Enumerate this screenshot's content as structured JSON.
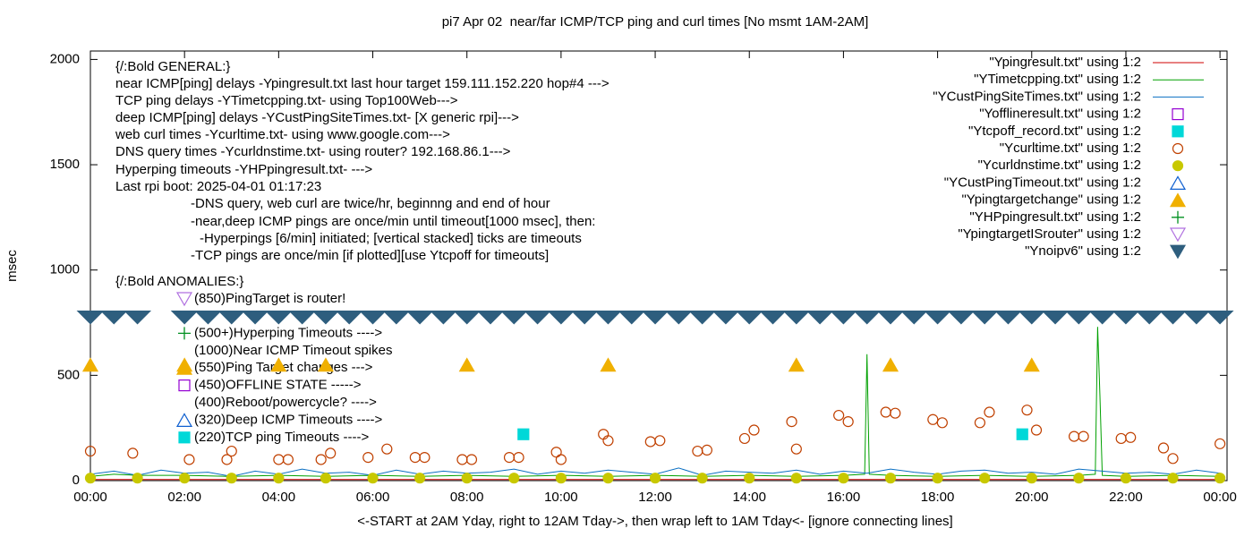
{
  "chart_data": {
    "type": "line",
    "title": "pi7 Apr 02  near/far ICMP/TCP ping and curl times [No msmt 1AM-2AM]",
    "xlabel": "<-START at 2AM Yday, right to 12AM Tday->, then wrap left to 1AM Tday<- [ignore connecting lines]",
    "ylabel": "msec",
    "xlim": [
      0,
      24.15
    ],
    "ylim": [
      0,
      2040
    ],
    "xticks": [
      {
        "value": 0,
        "label": "00:00"
      },
      {
        "value": 2,
        "label": "02:00"
      },
      {
        "value": 4,
        "label": "04:00"
      },
      {
        "value": 6,
        "label": "06:00"
      },
      {
        "value": 8,
        "label": "08:00"
      },
      {
        "value": 10,
        "label": "10:00"
      },
      {
        "value": 12,
        "label": "12:00"
      },
      {
        "value": 14,
        "label": "14:00"
      },
      {
        "value": 16,
        "label": "16:00"
      },
      {
        "value": 18,
        "label": "18:00"
      },
      {
        "value": 20,
        "label": "20:00"
      },
      {
        "value": 22,
        "label": "22:00"
      },
      {
        "value": 24,
        "label": "00:00"
      }
    ],
    "yticks": [
      0,
      500,
      1000,
      1500,
      2000
    ],
    "legend": "top-right",
    "notes": [
      "{/:Bold GENERAL:}",
      "near ICMP[ping] delays -Ypingresult.txt last hour target 159.111.152.220 hop#4 --->",
      "TCP ping delays -YTimetcpping.txt- using Top100Web--->",
      "deep ICMP[ping] delays -YCustPingSiteTimes.txt- [X generic rpi]--->",
      "web curl times -Ycurltime.txt- using www.google.com--->",
      "DNS query times -Ycurldnstime.txt- using router? 192.168.86.1--->",
      "Hyperping timeouts -YHPpingresult.txt- --->",
      "Last rpi boot: 2025-04-01 01:17:23",
      "-DNS query, web curl are twice/hr, beginnng and end of hour",
      "-near,deep ICMP pings are once/min until timeout[1000 msec], then:",
      "-Hyperpings [6/min] initiated; [vertical stacked] ticks are timeouts",
      "-TCP pings are once/min [if plotted][use Ytcpoff for timeouts]",
      "{/:Bold ANOMALIES:}"
    ],
    "anomalies": [
      "(850)PingTarget is router!",
      "(500+)Hyperping Timeouts ---->",
      "(1000)Near ICMP Timeout spikes",
      "(550)Ping Target changes --->",
      "(450)OFFLINE STATE ----->",
      "(400)Reboot/powercycle? ---->",
      "(320)Deep ICMP Timeouts ---->",
      "(220)TCP ping Timeouts ---->"
    ],
    "series": [
      {
        "name": "\"Ypingresult.txt\" using 1:2",
        "style": "line",
        "color": "#d00000",
        "x": [
          0,
          4,
          8,
          12,
          16,
          20,
          24
        ],
        "values": [
          5,
          5,
          5,
          5,
          5,
          5,
          5
        ]
      },
      {
        "name": "\"YTimetcpping.txt\" using 1:2",
        "style": "line",
        "color": "#00a000",
        "x": [
          0,
          0.5,
          1,
          2,
          3,
          4,
          5,
          6,
          7,
          8,
          9,
          10,
          11,
          12,
          13,
          14,
          15,
          16,
          16.45,
          16.5,
          16.55,
          17,
          18,
          19,
          20,
          21,
          21.35,
          21.4,
          21.45,
          21.5,
          22,
          23,
          24
        ],
        "values": [
          20,
          30,
          25,
          25,
          20,
          25,
          20,
          25,
          20,
          25,
          20,
          25,
          20,
          25,
          20,
          25,
          20,
          25,
          30,
          600,
          30,
          25,
          20,
          25,
          20,
          25,
          30,
          730,
          400,
          25,
          20,
          25,
          20
        ]
      },
      {
        "name": "\"YCustPingSiteTimes.txt\" using 1:2",
        "style": "line",
        "color": "#0a6fc2",
        "x": [
          0,
          0.5,
          1,
          1.5,
          2,
          2.5,
          3,
          3.5,
          4,
          4.5,
          5,
          5.5,
          6,
          6.5,
          7,
          7.5,
          8,
          8.5,
          9,
          9.5,
          10,
          10.5,
          11,
          11.5,
          12,
          12.5,
          13,
          13.5,
          14,
          14.5,
          15,
          15.5,
          16,
          16.5,
          17,
          17.5,
          18,
          18.5,
          19,
          19.5,
          20,
          20.5,
          21,
          21.5,
          22,
          22.5,
          23,
          23.5,
          24
        ],
        "values": [
          30,
          45,
          25,
          50,
          35,
          40,
          20,
          45,
          30,
          55,
          35,
          40,
          25,
          50,
          30,
          45,
          35,
          40,
          55,
          30,
          45,
          35,
          50,
          40,
          30,
          60,
          25,
          45,
          40,
          35,
          50,
          30,
          45,
          35,
          55,
          40,
          30,
          45,
          50,
          35,
          40,
          30,
          55,
          45,
          35,
          40,
          30,
          50,
          35
        ]
      },
      {
        "name": "\"Yofflineresult.txt\" using 1:2",
        "style": "points",
        "marker": "square-open",
        "color": "#9400d3",
        "x": [],
        "values": []
      },
      {
        "name": "\"Ytcpoff_record.txt\" using 1:2",
        "style": "points",
        "marker": "square-filled",
        "color": "#00d8d8",
        "x": [
          9.2,
          19.8
        ],
        "values": [
          220,
          220
        ]
      },
      {
        "name": "\"Ycurltime.txt\" using 1:2",
        "style": "points",
        "marker": "circle-open",
        "color": "#c04000",
        "x": [
          0,
          0.9,
          2.1,
          2.9,
          3.0,
          4.0,
          4.2,
          4.9,
          5.1,
          5.9,
          6.3,
          6.9,
          7.1,
          7.9,
          8.1,
          8.9,
          9.1,
          9.9,
          10.0,
          10.9,
          11.0,
          11.9,
          12.1,
          12.9,
          13.1,
          13.9,
          14.1,
          14.9,
          15.0,
          15.9,
          16.1,
          16.9,
          17.1,
          17.9,
          18.1,
          18.9,
          19.1,
          19.9,
          20.1,
          20.9,
          21.1,
          21.9,
          22.1,
          22.8,
          23.0,
          24.0
        ],
        "values": [
          140,
          130,
          100,
          100,
          140,
          100,
          100,
          100,
          130,
          110,
          150,
          110,
          110,
          100,
          100,
          110,
          110,
          135,
          100,
          220,
          190,
          185,
          190,
          140,
          145,
          200,
          240,
          280,
          150,
          310,
          280,
          325,
          320,
          290,
          275,
          275,
          325,
          335,
          240,
          210,
          210,
          200,
          205,
          155,
          105,
          175
        ]
      },
      {
        "name": "\"Ycurldnstime.txt\" using 1:2",
        "style": "points",
        "marker": "circle-filled",
        "color": "#c8c800",
        "x": [
          0,
          1,
          2,
          3,
          4,
          5,
          6,
          7,
          8,
          9,
          10,
          11,
          12,
          13,
          14,
          15,
          16,
          17,
          18,
          19,
          20,
          21,
          22,
          23,
          24
        ],
        "values": [
          12,
          12,
          12,
          12,
          12,
          12,
          12,
          12,
          12,
          12,
          12,
          12,
          12,
          12,
          12,
          12,
          12,
          12,
          12,
          12,
          12,
          12,
          12,
          12,
          12
        ]
      },
      {
        "name": "\"YCustPingTimeout.txt\" using 1:2",
        "style": "points",
        "marker": "triangle-open",
        "color": "#1060d0",
        "x": [],
        "values": []
      },
      {
        "name": "\"Ypingtargetchange\" using 1:2",
        "style": "points",
        "marker": "triangle-filled",
        "color": "#f0b000",
        "x": [
          0,
          2,
          4,
          5,
          8,
          11,
          15,
          17,
          20
        ],
        "values": [
          550,
          550,
          550,
          550,
          550,
          550,
          550,
          550,
          550
        ]
      },
      {
        "name": "\"YHPpingresult.txt\" using 1:2",
        "style": "points",
        "marker": "plus",
        "color": "#009020",
        "x": [],
        "values": []
      },
      {
        "name": "\"YpingtargetISrouter\" using 1:2",
        "style": "points",
        "marker": "triangle-down-open",
        "color": "#b070e0",
        "x": [],
        "values": []
      },
      {
        "name": "\"Ynoipv6\" using 1:2",
        "style": "points",
        "marker": "triangle-down-filled",
        "color": "#2e5e7e",
        "x": [
          0,
          0.5,
          1,
          2,
          2.5,
          3,
          3.5,
          4,
          4.5,
          5,
          5.5,
          6,
          6.5,
          7,
          7.5,
          8,
          8.5,
          9,
          9.5,
          10,
          10.5,
          11,
          11.5,
          12,
          12.5,
          13,
          13.5,
          14,
          14.5,
          15,
          15.5,
          16,
          16.5,
          17,
          17.5,
          18,
          18.5,
          19,
          19.5,
          20,
          20.5,
          21,
          21.5,
          22,
          22.5,
          23,
          23.5,
          24
        ],
        "values": [
          775,
          775,
          775,
          775,
          775,
          775,
          775,
          775,
          775,
          775,
          775,
          775,
          775,
          775,
          775,
          775,
          775,
          775,
          775,
          775,
          775,
          775,
          775,
          775,
          775,
          775,
          775,
          775,
          775,
          775,
          775,
          775,
          775,
          775,
          775,
          775,
          775,
          775,
          775,
          775,
          775,
          775,
          775,
          775,
          775,
          775,
          775,
          775
        ]
      }
    ]
  }
}
